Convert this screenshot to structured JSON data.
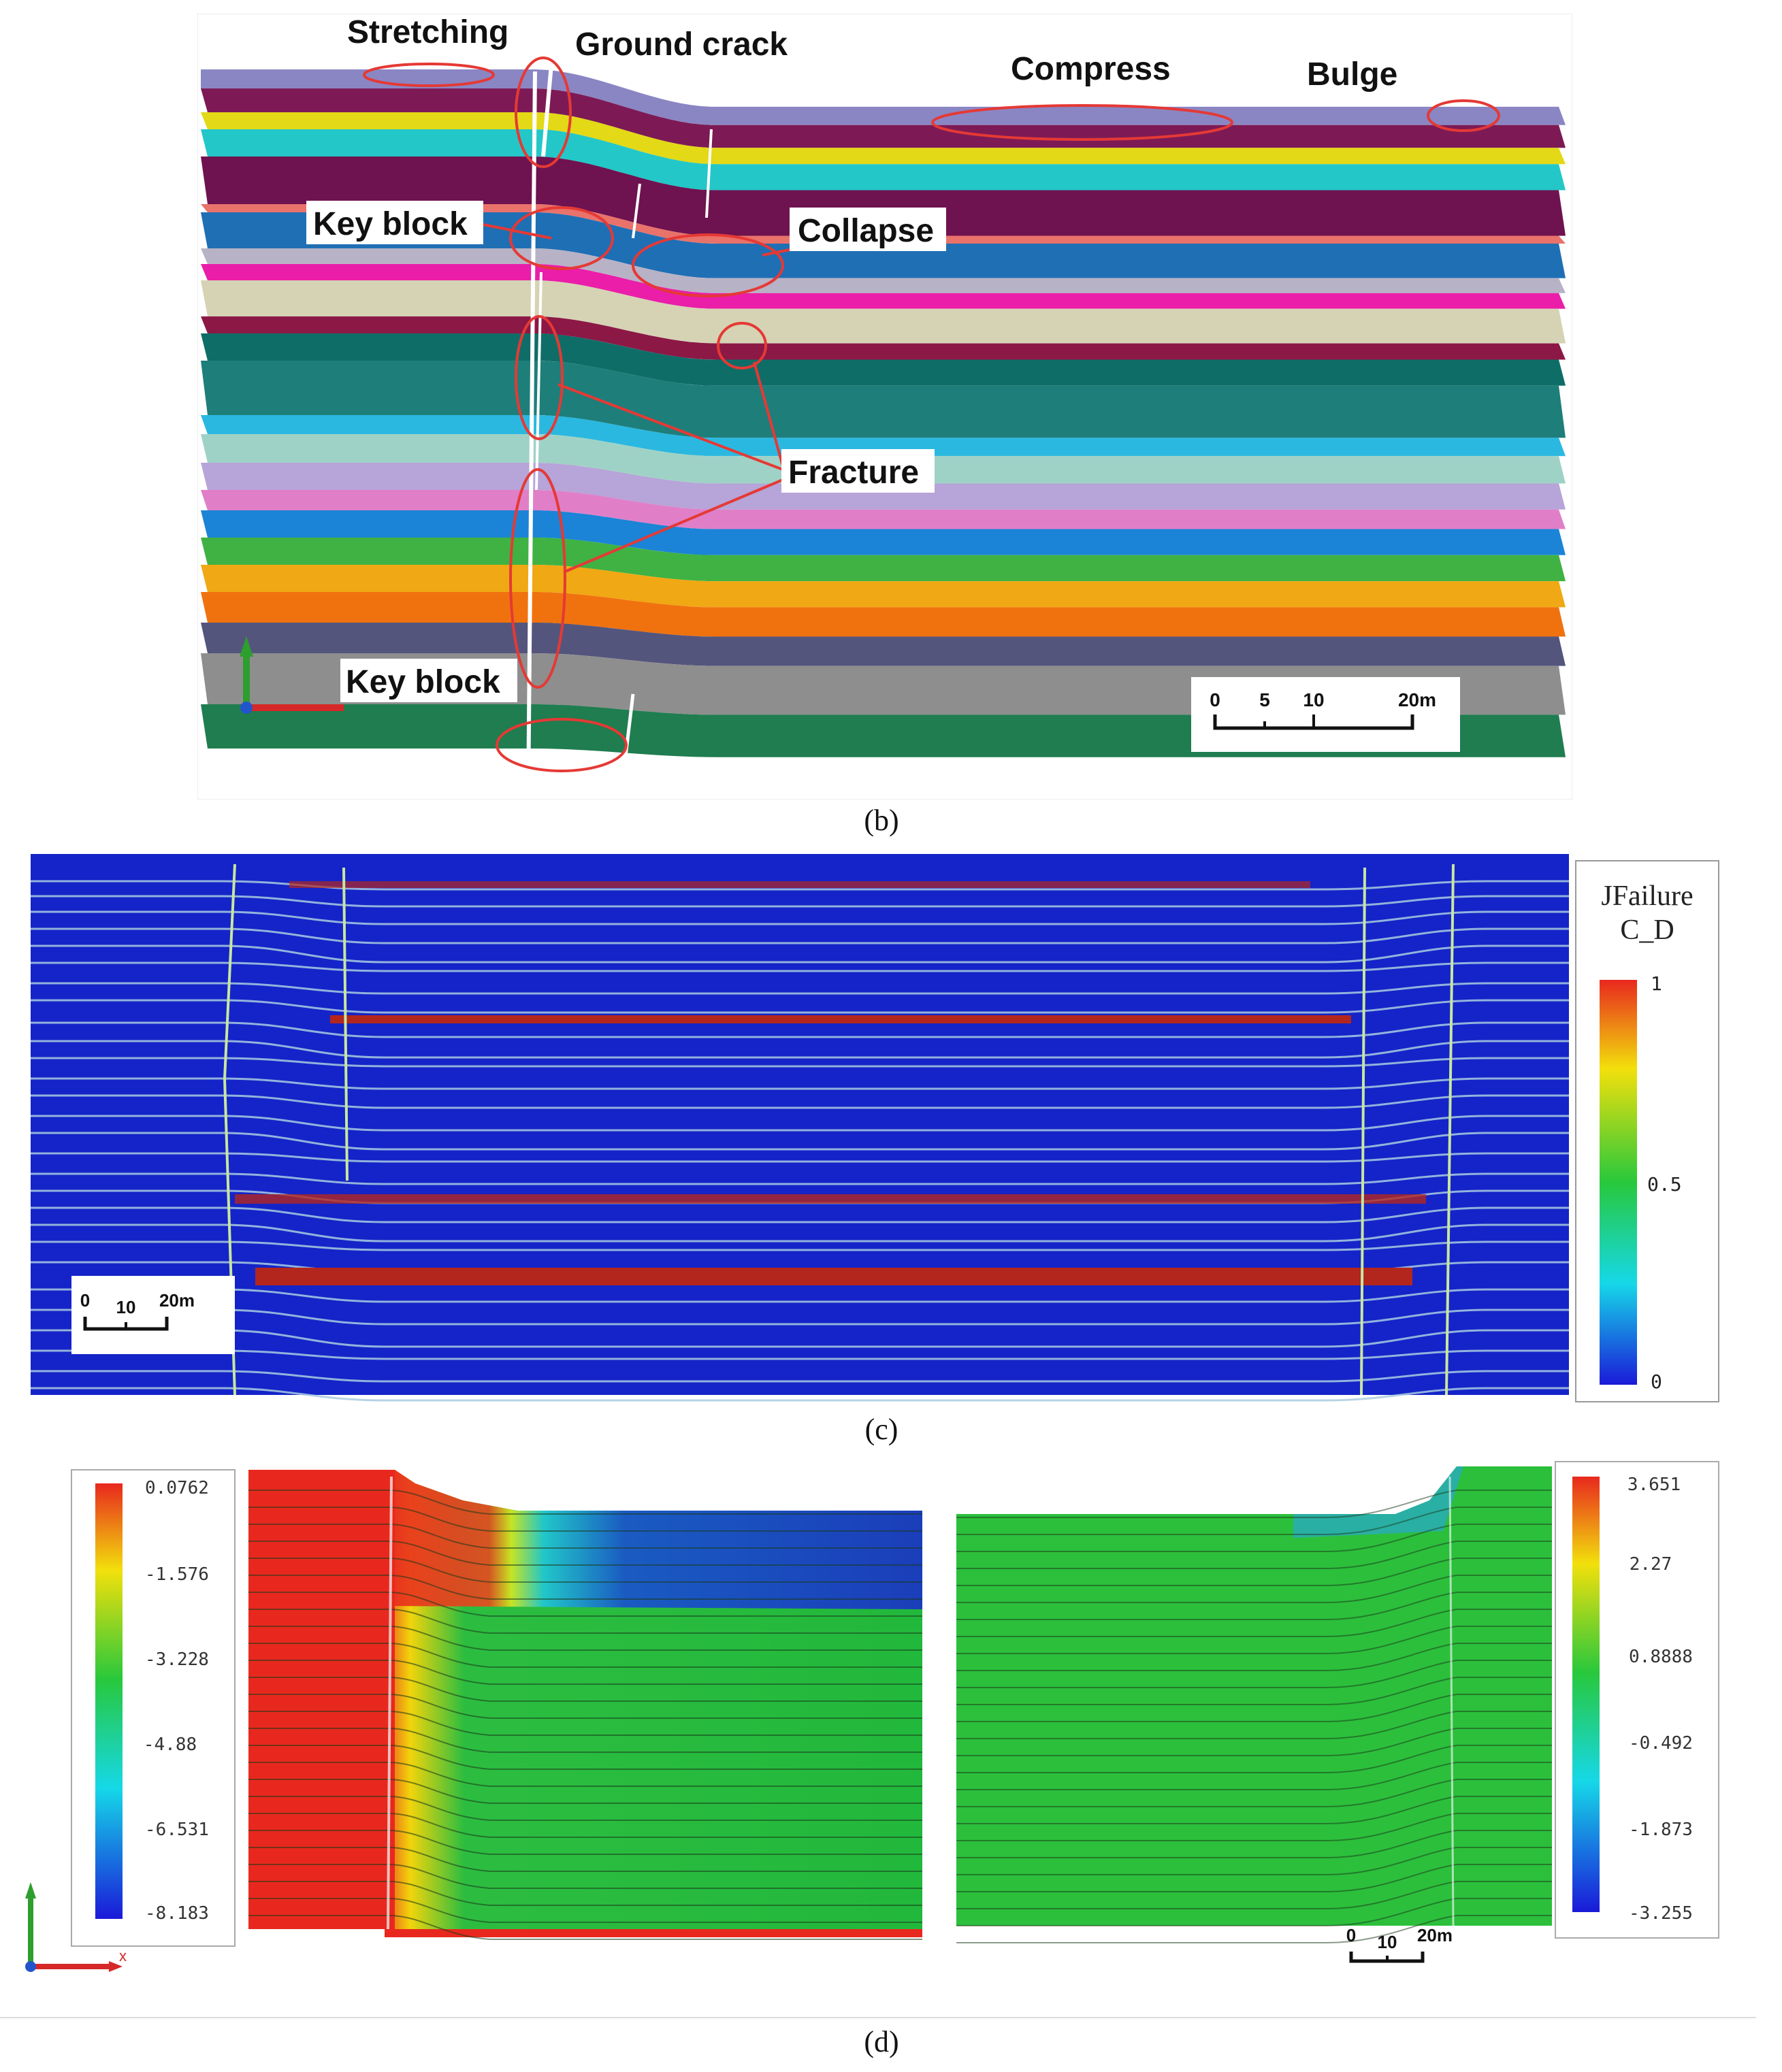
{
  "panel_b": {
    "annotations": {
      "stretching": "Stretching",
      "ground_crack": "Ground crack",
      "compress": "Compress",
      "bulge": "Bulge",
      "key_block_upper": "Key block",
      "collapse": "Collapse",
      "fracture": "Fracture",
      "key_block_lower": "Key block"
    },
    "scale_labels": [
      "0",
      "5",
      "10",
      "20m"
    ],
    "caption": "(b)",
    "layer_colors": [
      "#8a86c4",
      "#7d1a55",
      "#e3d916",
      "#24c7c7",
      "#6e1250",
      "#e9726a",
      "#1f6fb5",
      "#b8b2c6",
      "#ea1ea8",
      "#d6d3b4",
      "#8c1846",
      "#0e6e67",
      "#1e7e7a",
      "#2bb8e0",
      "#9fd2c6",
      "#b7a4d8",
      "#e07fc8",
      "#1b84d6",
      "#3fb243",
      "#f0a814",
      "#f0720f",
      "#54557d",
      "#8e8e8e",
      "#1f7d4f"
    ],
    "colors": {
      "annotation_ring": "#e53935",
      "label_bg": "#ffffff"
    }
  },
  "panel_c": {
    "legend": {
      "title_line1": "JFailure",
      "title_line2": "C_D",
      "ticks": [
        "1",
        "0.5",
        "0"
      ]
    },
    "scale_labels": [
      "0",
      "10",
      "20m"
    ],
    "caption": "(c)",
    "colors": {
      "background": "#1424c8",
      "joint": "#a9cbe0",
      "failure": "#b3261e"
    }
  },
  "panel_d": {
    "legend_left": {
      "ticks": [
        "0.0762",
        "-1.576",
        "-3.228",
        "-4.88",
        "-6.531",
        "-8.183"
      ]
    },
    "legend_right": {
      "ticks": [
        "3.651",
        "2.27",
        "0.8888",
        "-0.492",
        "-1.873",
        "-3.255"
      ]
    },
    "axis_label": "x",
    "scale_labels": [
      "0",
      "10",
      "20m"
    ],
    "caption": "(d)"
  }
}
